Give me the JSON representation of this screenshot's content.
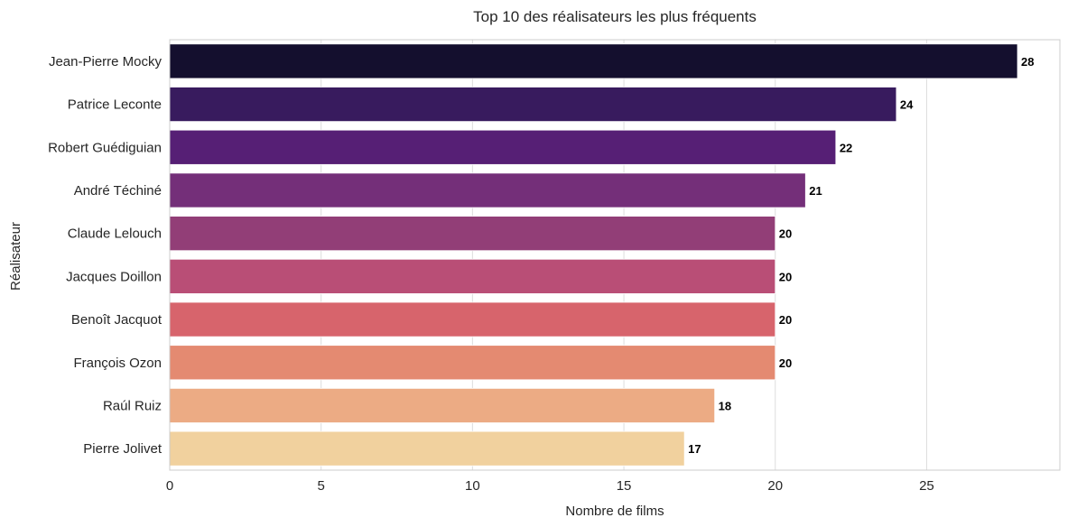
{
  "chart_data": {
    "type": "bar",
    "orientation": "horizontal",
    "title": "Top 10 des réalisateurs les plus fréquents",
    "xlabel": "Nombre de films",
    "ylabel": "Réalisateur",
    "xlim": [
      0,
      29.4
    ],
    "xticks": [
      0,
      5,
      10,
      15,
      20,
      25
    ],
    "grid": true,
    "categories": [
      "Jean-Pierre Mocky",
      "Patrice Leconte",
      "Robert Guédiguian",
      "André Téchiné",
      "Claude Lelouch",
      "Jacques Doillon",
      "Benoît Jacquot",
      "François Ozon",
      "Raúl Ruiz",
      "Pierre Jolivet"
    ],
    "values": [
      28,
      24,
      22,
      21,
      20,
      20,
      20,
      20,
      18,
      17
    ],
    "colors": [
      "#140f2e",
      "#381b5e",
      "#561f75",
      "#742f79",
      "#923e77",
      "#b94e76",
      "#d7646c",
      "#e48a71",
      "#ecab84",
      "#f1d19e"
    ]
  }
}
